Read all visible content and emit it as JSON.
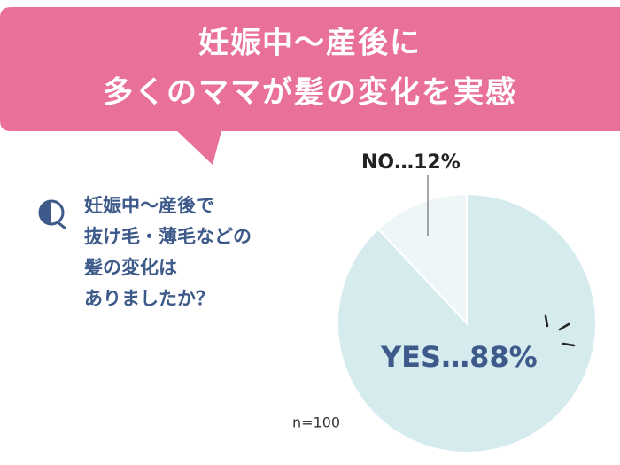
{
  "header": {
    "title_lines": [
      "妊娠中〜産後に",
      "多くのママが髪の変化を実感"
    ]
  },
  "question": {
    "lines": [
      "妊娠中〜産後で",
      "抜け毛・薄毛などの",
      "髪の変化は",
      "ありましたか？"
    ]
  },
  "chart_data": {
    "type": "pie",
    "values": [
      88,
      12
    ],
    "value_labels": [
      "YES…88%",
      "NO…12%"
    ],
    "colors": [
      "#d5ebee",
      "#eef6f7"
    ],
    "note": "n=100"
  }
}
